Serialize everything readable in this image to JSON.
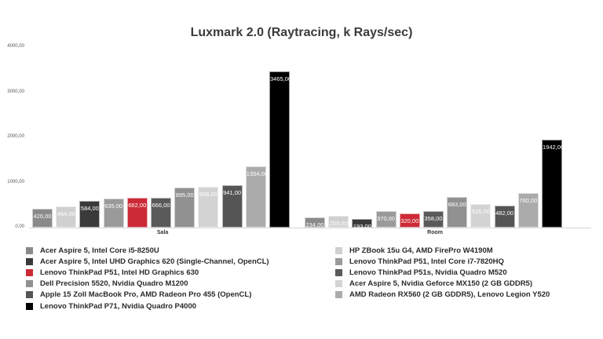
{
  "chart_data": {
    "type": "bar",
    "title": "Luxmark 2.0 (Raytracing, k Rays/sec)",
    "xlabel": "",
    "ylabel": "",
    "ylim": [
      0,
      4000
    ],
    "yticks": [
      "0,00",
      "1000,00",
      "2000,00",
      "3000,00",
      "4000,00"
    ],
    "categories": [
      "Sala",
      "Room"
    ],
    "legend_position": "bottom",
    "series": [
      {
        "name": "Acer Aspire 5, Intel Core i5-8250U",
        "color": "#8a8a8a",
        "values": [
          426,
          234
        ],
        "labels": [
          "426,00",
          "234,00"
        ]
      },
      {
        "name": "HP ZBook 15u G4, AMD FirePro W4190M",
        "color": "#d0d0d0",
        "values": [
          464,
          259
        ],
        "labels": [
          "464,00",
          "259,00"
        ]
      },
      {
        "name": "Acer Aspire 5, Intel UHD Graphics 620 (Single-Channel, OpenCL)",
        "color": "#3a3a3a",
        "values": [
          584,
          193
        ],
        "labels": [
          "584,00",
          "193,00"
        ]
      },
      {
        "name": "Lenovo ThinkPad P51, Intel Core i7-7820HQ",
        "color": "#9a9a9a",
        "values": [
          635,
          370
        ],
        "labels": [
          "635,00",
          "370,00"
        ]
      },
      {
        "name": "Lenovo ThinkPad P51, Intel HD Graphics 630",
        "color": "#cc2a36",
        "values": [
          662,
          320
        ],
        "labels": [
          "662,00",
          "320,00"
        ]
      },
      {
        "name": "Lenovo ThinkPad P51s, Nvidia Quadro M520",
        "color": "#5a5a5a",
        "values": [
          666,
          358
        ],
        "labels": [
          "666,00",
          "358,00"
        ]
      },
      {
        "name": "Dell Precision 5520, Nvidia Quadro M1200",
        "color": "#919191",
        "values": [
          895,
          683
        ],
        "labels": [
          "895,00",
          "683,00"
        ]
      },
      {
        "name": "Acer Aspire 5, Nvidia Geforce MX150 (2 GB GDDR5)",
        "color": "#d3d3d3",
        "values": [
          908,
          516
        ],
        "labels": [
          "908,00",
          "516,00"
        ]
      },
      {
        "name": "Apple 15 Zoll MacBook Pro, AMD Radeon Pro 455 (OpenCL)",
        "color": "#555555",
        "values": [
          941,
          482
        ],
        "labels": [
          "941,00",
          "482,00"
        ]
      },
      {
        "name": "AMD Radeon RX560 (2 GB GDDR5), Lenovo Legion Y520",
        "color": "#ababab",
        "values": [
          1354,
          760
        ],
        "labels": [
          "1354,00",
          "760,00"
        ]
      },
      {
        "name": "Lenovo ThinkPad P71, Nvidia Quadro P4000",
        "color": "#000000",
        "values": [
          3465,
          1942
        ],
        "labels": [
          "3465,00",
          "1942,00"
        ]
      }
    ]
  },
  "legend": {
    "left": [
      "Acer Aspire 5, Intel Core i5-8250U",
      "Acer Aspire 5, Intel UHD Graphics 620 (Single-Channel, OpenCL)",
      "Lenovo ThinkPad P51, Intel HD Graphics 630",
      "Dell Precision 5520, Nvidia Quadro M1200",
      "Apple 15 Zoll MacBook Pro, AMD Radeon Pro 455 (OpenCL)",
      "Lenovo ThinkPad P71, Nvidia Quadro P4000"
    ],
    "right": [
      "HP ZBook 15u G4, AMD FirePro W4190M",
      "Lenovo ThinkPad P51, Intel Core i7-7820HQ",
      "Lenovo ThinkPad P51s, Nvidia Quadro M520",
      "Acer Aspire 5, Nvidia Geforce MX150 (2 GB GDDR5)",
      "AMD Radeon RX560 (2 GB GDDR5), Lenovo Legion Y520"
    ]
  }
}
